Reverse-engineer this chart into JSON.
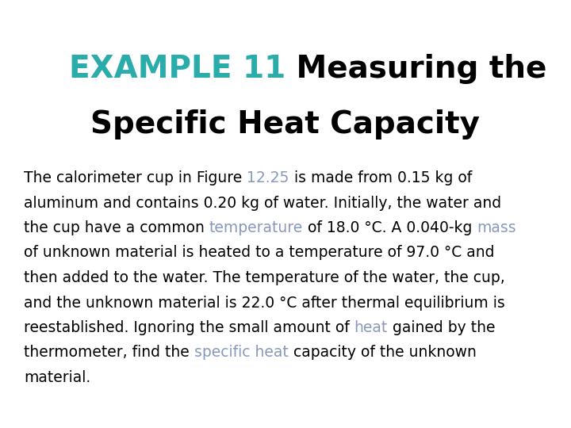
{
  "background_color": "#ffffff",
  "title_example": "EXAMPLE 11",
  "title_example_color": "#2aacaa",
  "title_rest_line1": " Measuring the",
  "title_line2": "Specific Heat Capacity",
  "title_rest_color": "#000000",
  "title_fontsize": 28,
  "body_fontsize": 13.5,
  "body_color": "#000000",
  "link_color": "#8899bb",
  "fig_width": 7.2,
  "fig_height": 5.4,
  "dpi": 100,
  "lines": [
    [
      [
        "The calorimeter cup in Figure ",
        false
      ],
      [
        "12.25",
        true
      ],
      [
        " is made from 0.15 kg of",
        false
      ]
    ],
    [
      [
        "aluminum and contains 0.20 kg of water. Initially, the water and",
        false
      ]
    ],
    [
      [
        "the cup have a common ",
        false
      ],
      [
        "temperature",
        true
      ],
      [
        " of 18.0 °C. A 0.040-kg ",
        false
      ],
      [
        "mass",
        true
      ]
    ],
    [
      [
        "of unknown material is heated to a temperature of 97.0 °C and",
        false
      ]
    ],
    [
      [
        "then added to the water. The temperature of the water, the cup,",
        false
      ]
    ],
    [
      [
        "and the unknown material is 22.0 °C after thermal equilibrium is",
        false
      ]
    ],
    [
      [
        "reestablished. Ignoring the small amount of ",
        false
      ],
      [
        "heat",
        true
      ],
      [
        " gained by the",
        false
      ]
    ],
    [
      [
        "thermometer, find the ",
        false
      ],
      [
        "specific heat",
        true
      ],
      [
        " capacity of the unknown",
        false
      ]
    ],
    [
      [
        "material.",
        false
      ]
    ]
  ]
}
